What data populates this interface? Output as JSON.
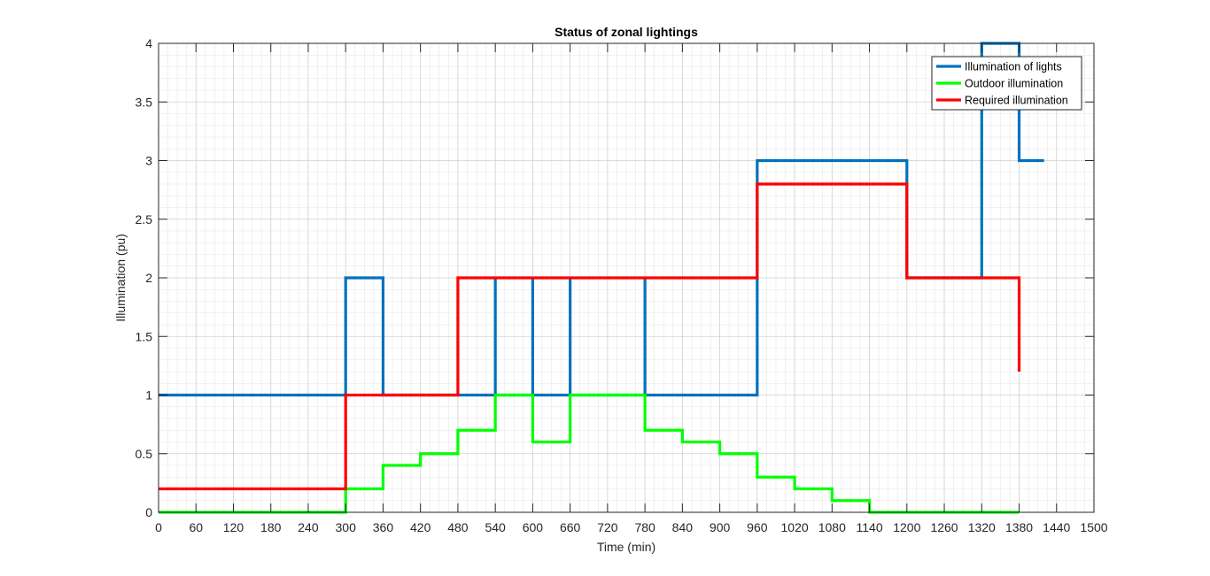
{
  "chart_data": {
    "type": "line",
    "title": "Status of zonal lightings",
    "xlabel": "Time (min)",
    "ylabel": "Illumination (pu)",
    "xlim": [
      0,
      1500
    ],
    "ylim": [
      0,
      4
    ],
    "xticks": [
      0,
      60,
      120,
      180,
      240,
      300,
      360,
      420,
      480,
      540,
      600,
      660,
      720,
      780,
      840,
      900,
      960,
      1020,
      1080,
      1140,
      1200,
      1260,
      1320,
      1380,
      1440,
      1500
    ],
    "yticks": [
      0,
      0.5,
      1,
      1.5,
      2,
      2.5,
      3,
      3.5,
      4
    ],
    "ytick_labels": [
      "0",
      "0.5",
      "1",
      "1.5",
      "2",
      "2.5",
      "3",
      "3.5",
      "4"
    ],
    "minor_x_step": 15,
    "minor_y_step": 0.1,
    "grid": true,
    "legend_position": "top-right",
    "series": [
      {
        "name": "Illumination of lights",
        "color": "#0072BD",
        "x": [
          0,
          300,
          300,
          360,
          360,
          540,
          540,
          540,
          600,
          600,
          600,
          660,
          660,
          660,
          780,
          780,
          780,
          960,
          960,
          1200,
          1200,
          1320,
          1320,
          1380,
          1380,
          1420
        ],
        "y": [
          1,
          1,
          2,
          2,
          1,
          1,
          2,
          1,
          1,
          2,
          1,
          1,
          2,
          1,
          1,
          2,
          1,
          1,
          3,
          3,
          2,
          2,
          4,
          4,
          3,
          3
        ]
      },
      {
        "name": "Outdoor illumination",
        "color": "#00FF00",
        "x": [
          0,
          300,
          300,
          360,
          360,
          420,
          420,
          480,
          480,
          540,
          540,
          600,
          600,
          660,
          660,
          780,
          780,
          840,
          840,
          900,
          900,
          960,
          960,
          1020,
          1020,
          1080,
          1080,
          1140,
          1140,
          1380
        ],
        "y": [
          0,
          0,
          0.2,
          0.2,
          0.4,
          0.4,
          0.5,
          0.5,
          0.7,
          0.7,
          1,
          1,
          0.6,
          0.6,
          1,
          1,
          0.7,
          0.7,
          0.6,
          0.6,
          0.5,
          0.5,
          0.3,
          0.3,
          0.2,
          0.2,
          0.1,
          0.1,
          0,
          0
        ]
      },
      {
        "name": "Required illumination",
        "color": "#FF0000",
        "x": [
          0,
          300,
          300,
          480,
          480,
          960,
          960,
          1200,
          1200,
          1380,
          1380
        ],
        "y": [
          0.2,
          0.2,
          1,
          1,
          2,
          2,
          2.8,
          2.8,
          2,
          2,
          1.2
        ]
      }
    ]
  }
}
